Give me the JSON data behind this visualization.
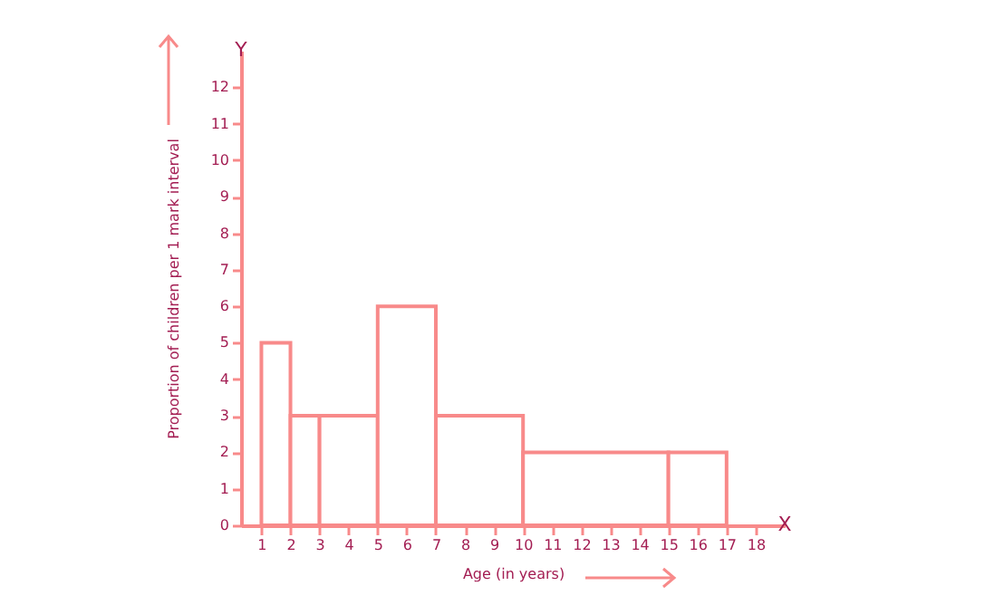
{
  "chart_data": {
    "type": "histogram",
    "xlabel": "Age (in years)",
    "ylabel": "Proportion of children per 1 mark interval",
    "bins": [
      1,
      2,
      3,
      5,
      7,
      10,
      15,
      17
    ],
    "values": [
      5,
      3,
      3,
      6,
      3,
      2,
      2
    ],
    "color": "#f88a8a",
    "xlim": [
      0.3,
      19
    ],
    "ylim": [
      0,
      13
    ],
    "xticks": [
      1,
      2,
      3,
      4,
      5,
      6,
      7,
      8,
      9,
      10,
      11,
      12,
      13,
      14,
      15,
      16,
      17,
      18
    ],
    "yticks": [
      0,
      1,
      2,
      3,
      4,
      5,
      6,
      7,
      8,
      9,
      10,
      11,
      12
    ],
    "grid": false,
    "annotations": [
      "X",
      "Y"
    ]
  }
}
